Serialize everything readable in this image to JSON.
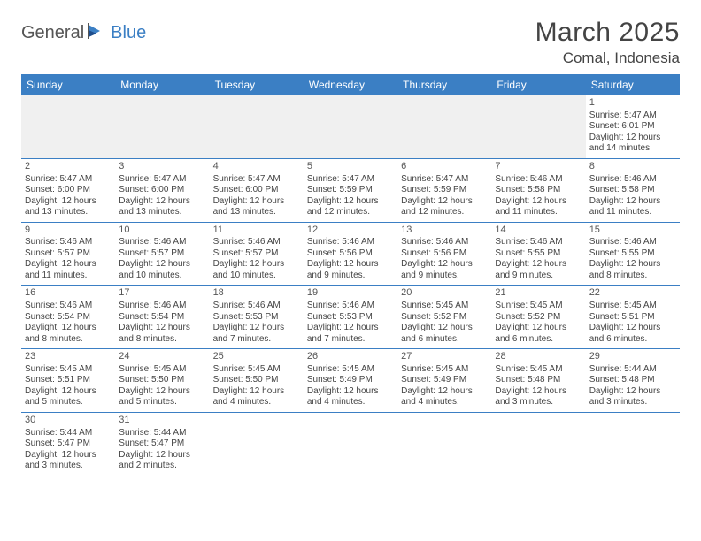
{
  "logo": {
    "part1": "General",
    "part2": "Blue"
  },
  "title": "March 2025",
  "location": "Comal, Indonesia",
  "weekdays": [
    "Sunday",
    "Monday",
    "Tuesday",
    "Wednesday",
    "Thursday",
    "Friday",
    "Saturday"
  ],
  "colors": {
    "header_bg": "#3b7fc4",
    "header_text": "#ffffff",
    "border": "#3b7fc4",
    "first_row_bg": "#f0f0f0"
  },
  "weeks": [
    [
      null,
      null,
      null,
      null,
      null,
      null,
      {
        "n": "1",
        "sunrise": "Sunrise: 5:47 AM",
        "sunset": "Sunset: 6:01 PM",
        "daylight": "Daylight: 12 hours and 14 minutes."
      }
    ],
    [
      {
        "n": "2",
        "sunrise": "Sunrise: 5:47 AM",
        "sunset": "Sunset: 6:00 PM",
        "daylight": "Daylight: 12 hours and 13 minutes."
      },
      {
        "n": "3",
        "sunrise": "Sunrise: 5:47 AM",
        "sunset": "Sunset: 6:00 PM",
        "daylight": "Daylight: 12 hours and 13 minutes."
      },
      {
        "n": "4",
        "sunrise": "Sunrise: 5:47 AM",
        "sunset": "Sunset: 6:00 PM",
        "daylight": "Daylight: 12 hours and 13 minutes."
      },
      {
        "n": "5",
        "sunrise": "Sunrise: 5:47 AM",
        "sunset": "Sunset: 5:59 PM",
        "daylight": "Daylight: 12 hours and 12 minutes."
      },
      {
        "n": "6",
        "sunrise": "Sunrise: 5:47 AM",
        "sunset": "Sunset: 5:59 PM",
        "daylight": "Daylight: 12 hours and 12 minutes."
      },
      {
        "n": "7",
        "sunrise": "Sunrise: 5:46 AM",
        "sunset": "Sunset: 5:58 PM",
        "daylight": "Daylight: 12 hours and 11 minutes."
      },
      {
        "n": "8",
        "sunrise": "Sunrise: 5:46 AM",
        "sunset": "Sunset: 5:58 PM",
        "daylight": "Daylight: 12 hours and 11 minutes."
      }
    ],
    [
      {
        "n": "9",
        "sunrise": "Sunrise: 5:46 AM",
        "sunset": "Sunset: 5:57 PM",
        "daylight": "Daylight: 12 hours and 11 minutes."
      },
      {
        "n": "10",
        "sunrise": "Sunrise: 5:46 AM",
        "sunset": "Sunset: 5:57 PM",
        "daylight": "Daylight: 12 hours and 10 minutes."
      },
      {
        "n": "11",
        "sunrise": "Sunrise: 5:46 AM",
        "sunset": "Sunset: 5:57 PM",
        "daylight": "Daylight: 12 hours and 10 minutes."
      },
      {
        "n": "12",
        "sunrise": "Sunrise: 5:46 AM",
        "sunset": "Sunset: 5:56 PM",
        "daylight": "Daylight: 12 hours and 9 minutes."
      },
      {
        "n": "13",
        "sunrise": "Sunrise: 5:46 AM",
        "sunset": "Sunset: 5:56 PM",
        "daylight": "Daylight: 12 hours and 9 minutes."
      },
      {
        "n": "14",
        "sunrise": "Sunrise: 5:46 AM",
        "sunset": "Sunset: 5:55 PM",
        "daylight": "Daylight: 12 hours and 9 minutes."
      },
      {
        "n": "15",
        "sunrise": "Sunrise: 5:46 AM",
        "sunset": "Sunset: 5:55 PM",
        "daylight": "Daylight: 12 hours and 8 minutes."
      }
    ],
    [
      {
        "n": "16",
        "sunrise": "Sunrise: 5:46 AM",
        "sunset": "Sunset: 5:54 PM",
        "daylight": "Daylight: 12 hours and 8 minutes."
      },
      {
        "n": "17",
        "sunrise": "Sunrise: 5:46 AM",
        "sunset": "Sunset: 5:54 PM",
        "daylight": "Daylight: 12 hours and 8 minutes."
      },
      {
        "n": "18",
        "sunrise": "Sunrise: 5:46 AM",
        "sunset": "Sunset: 5:53 PM",
        "daylight": "Daylight: 12 hours and 7 minutes."
      },
      {
        "n": "19",
        "sunrise": "Sunrise: 5:46 AM",
        "sunset": "Sunset: 5:53 PM",
        "daylight": "Daylight: 12 hours and 7 minutes."
      },
      {
        "n": "20",
        "sunrise": "Sunrise: 5:45 AM",
        "sunset": "Sunset: 5:52 PM",
        "daylight": "Daylight: 12 hours and 6 minutes."
      },
      {
        "n": "21",
        "sunrise": "Sunrise: 5:45 AM",
        "sunset": "Sunset: 5:52 PM",
        "daylight": "Daylight: 12 hours and 6 minutes."
      },
      {
        "n": "22",
        "sunrise": "Sunrise: 5:45 AM",
        "sunset": "Sunset: 5:51 PM",
        "daylight": "Daylight: 12 hours and 6 minutes."
      }
    ],
    [
      {
        "n": "23",
        "sunrise": "Sunrise: 5:45 AM",
        "sunset": "Sunset: 5:51 PM",
        "daylight": "Daylight: 12 hours and 5 minutes."
      },
      {
        "n": "24",
        "sunrise": "Sunrise: 5:45 AM",
        "sunset": "Sunset: 5:50 PM",
        "daylight": "Daylight: 12 hours and 5 minutes."
      },
      {
        "n": "25",
        "sunrise": "Sunrise: 5:45 AM",
        "sunset": "Sunset: 5:50 PM",
        "daylight": "Daylight: 12 hours and 4 minutes."
      },
      {
        "n": "26",
        "sunrise": "Sunrise: 5:45 AM",
        "sunset": "Sunset: 5:49 PM",
        "daylight": "Daylight: 12 hours and 4 minutes."
      },
      {
        "n": "27",
        "sunrise": "Sunrise: 5:45 AM",
        "sunset": "Sunset: 5:49 PM",
        "daylight": "Daylight: 12 hours and 4 minutes."
      },
      {
        "n": "28",
        "sunrise": "Sunrise: 5:45 AM",
        "sunset": "Sunset: 5:48 PM",
        "daylight": "Daylight: 12 hours and 3 minutes."
      },
      {
        "n": "29",
        "sunrise": "Sunrise: 5:44 AM",
        "sunset": "Sunset: 5:48 PM",
        "daylight": "Daylight: 12 hours and 3 minutes."
      }
    ],
    [
      {
        "n": "30",
        "sunrise": "Sunrise: 5:44 AM",
        "sunset": "Sunset: 5:47 PM",
        "daylight": "Daylight: 12 hours and 3 minutes."
      },
      {
        "n": "31",
        "sunrise": "Sunrise: 5:44 AM",
        "sunset": "Sunset: 5:47 PM",
        "daylight": "Daylight: 12 hours and 2 minutes."
      },
      null,
      null,
      null,
      null,
      null
    ]
  ]
}
